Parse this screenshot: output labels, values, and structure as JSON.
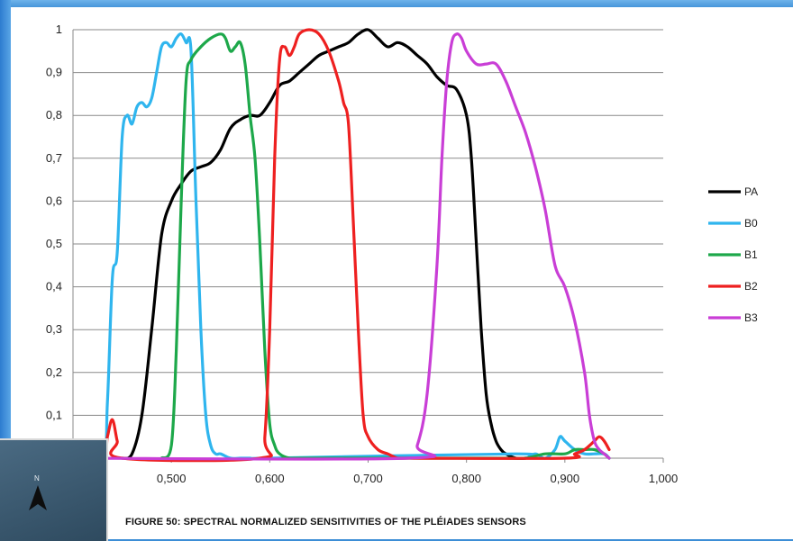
{
  "caption": "FIGURE 50: SPECTRAL NORMALIZED SENSITIVITIES OF THE PLÉIADES SENSORS",
  "inset": {
    "north_label": "N"
  },
  "chart_data": {
    "type": "line",
    "title": "",
    "xlabel": "",
    "ylabel": "",
    "xlim": [
      0.4,
      1.0
    ],
    "ylim": [
      0,
      1
    ],
    "x_ticks": [
      "0,500",
      "0,600",
      "0,700",
      "0,800",
      "0,900",
      "1,000"
    ],
    "x_tick_values": [
      0.5,
      0.6,
      0.7,
      0.8,
      0.9,
      1.0
    ],
    "y_ticks": [
      "0,1",
      "0,2",
      "0,3",
      "0,4",
      "0,5",
      "0,6",
      "0,7",
      "0,8",
      "0,9",
      "1"
    ],
    "y_tick_values": [
      0.1,
      0.2,
      0.3,
      0.4,
      0.5,
      0.6,
      0.7,
      0.8,
      0.9,
      1.0
    ],
    "grid": "horizontal",
    "legend_position": "right",
    "series": [
      {
        "name": "PA",
        "color": "#000000",
        "x": [
          0.45,
          0.46,
          0.47,
          0.48,
          0.49,
          0.5,
          0.51,
          0.52,
          0.53,
          0.54,
          0.55,
          0.56,
          0.57,
          0.58,
          0.59,
          0.6,
          0.61,
          0.62,
          0.63,
          0.64,
          0.65,
          0.66,
          0.67,
          0.68,
          0.69,
          0.7,
          0.71,
          0.72,
          0.73,
          0.74,
          0.75,
          0.76,
          0.77,
          0.78,
          0.79,
          0.8,
          0.805,
          0.81,
          0.815,
          0.82,
          0.825,
          0.83,
          0.835,
          0.84,
          0.85,
          0.86
        ],
        "y": [
          0.0,
          0.01,
          0.1,
          0.3,
          0.52,
          0.6,
          0.64,
          0.67,
          0.68,
          0.69,
          0.72,
          0.77,
          0.79,
          0.8,
          0.8,
          0.83,
          0.87,
          0.88,
          0.9,
          0.92,
          0.94,
          0.95,
          0.96,
          0.97,
          0.99,
          1.0,
          0.98,
          0.96,
          0.97,
          0.96,
          0.94,
          0.92,
          0.89,
          0.87,
          0.86,
          0.8,
          0.7,
          0.5,
          0.3,
          0.15,
          0.08,
          0.04,
          0.02,
          0.01,
          0.0,
          0.0
        ]
      },
      {
        "name": "B0",
        "color": "#2fb5ee",
        "x": [
          0.4,
          0.43,
          0.435,
          0.44,
          0.445,
          0.45,
          0.455,
          0.46,
          0.465,
          0.47,
          0.475,
          0.48,
          0.485,
          0.49,
          0.495,
          0.5,
          0.505,
          0.51,
          0.515,
          0.52,
          0.525,
          0.53,
          0.535,
          0.54,
          0.545,
          0.55,
          0.56,
          0.57,
          0.58,
          0.6,
          0.85,
          0.86,
          0.87,
          0.88,
          0.89,
          0.895,
          0.9,
          0.91,
          0.92,
          0.93,
          0.94,
          0.945
        ],
        "y": [
          0.0,
          0.0,
          0.13,
          0.42,
          0.48,
          0.75,
          0.8,
          0.78,
          0.82,
          0.83,
          0.82,
          0.84,
          0.9,
          0.96,
          0.97,
          0.96,
          0.98,
          0.99,
          0.97,
          0.95,
          0.6,
          0.3,
          0.1,
          0.03,
          0.01,
          0.01,
          0.0,
          0.0,
          0.0,
          0.0,
          0.01,
          0.0,
          0.01,
          0.0,
          0.02,
          0.05,
          0.04,
          0.02,
          0.01,
          0.01,
          0.01,
          0.0
        ]
      },
      {
        "name": "B1",
        "color": "#1da84a",
        "x": [
          0.49,
          0.5,
          0.505,
          0.51,
          0.515,
          0.52,
          0.53,
          0.54,
          0.55,
          0.555,
          0.56,
          0.565,
          0.57,
          0.575,
          0.58,
          0.585,
          0.59,
          0.595,
          0.6,
          0.605,
          0.61,
          0.62,
          0.63,
          0.82,
          0.83,
          0.84,
          0.86,
          0.88,
          0.9,
          0.91,
          0.92,
          0.93,
          0.94,
          0.945
        ],
        "y": [
          0.0,
          0.03,
          0.25,
          0.6,
          0.88,
          0.93,
          0.96,
          0.98,
          0.99,
          0.98,
          0.95,
          0.96,
          0.97,
          0.92,
          0.8,
          0.7,
          0.5,
          0.25,
          0.08,
          0.03,
          0.01,
          0.0,
          0.0,
          0.0,
          0.0,
          0.0,
          0.0,
          0.01,
          0.01,
          0.02,
          0.02,
          0.02,
          0.01,
          0.0
        ]
      },
      {
        "name": "B2",
        "color": "#ee2020",
        "x": [
          0.4,
          0.43,
          0.435,
          0.44,
          0.445,
          0.45,
          0.59,
          0.595,
          0.6,
          0.605,
          0.61,
          0.615,
          0.62,
          0.625,
          0.63,
          0.64,
          0.65,
          0.66,
          0.67,
          0.675,
          0.68,
          0.685,
          0.69,
          0.695,
          0.7,
          0.71,
          0.72,
          0.73,
          0.74,
          0.9,
          0.91,
          0.92,
          0.93,
          0.935,
          0.94,
          0.945
        ],
        "y": [
          0.0,
          0.0,
          0.05,
          0.09,
          0.04,
          0.0,
          0.0,
          0.05,
          0.3,
          0.7,
          0.93,
          0.96,
          0.94,
          0.96,
          0.99,
          1.0,
          0.99,
          0.95,
          0.88,
          0.83,
          0.78,
          0.55,
          0.3,
          0.1,
          0.05,
          0.02,
          0.01,
          0.0,
          0.0,
          0.0,
          0.01,
          0.02,
          0.04,
          0.05,
          0.04,
          0.02
        ]
      },
      {
        "name": "B3",
        "color": "#c93ed6",
        "x": [
          0.4,
          0.74,
          0.75,
          0.76,
          0.77,
          0.775,
          0.78,
          0.785,
          0.79,
          0.795,
          0.8,
          0.81,
          0.82,
          0.83,
          0.84,
          0.85,
          0.86,
          0.87,
          0.88,
          0.89,
          0.9,
          0.91,
          0.92,
          0.925,
          0.93,
          0.935,
          0.94,
          0.945
        ],
        "y": [
          0.0,
          0.0,
          0.03,
          0.15,
          0.45,
          0.7,
          0.88,
          0.97,
          0.99,
          0.98,
          0.95,
          0.92,
          0.92,
          0.92,
          0.88,
          0.82,
          0.76,
          0.68,
          0.58,
          0.45,
          0.4,
          0.32,
          0.2,
          0.1,
          0.04,
          0.02,
          0.01,
          0.0
        ]
      }
    ]
  }
}
